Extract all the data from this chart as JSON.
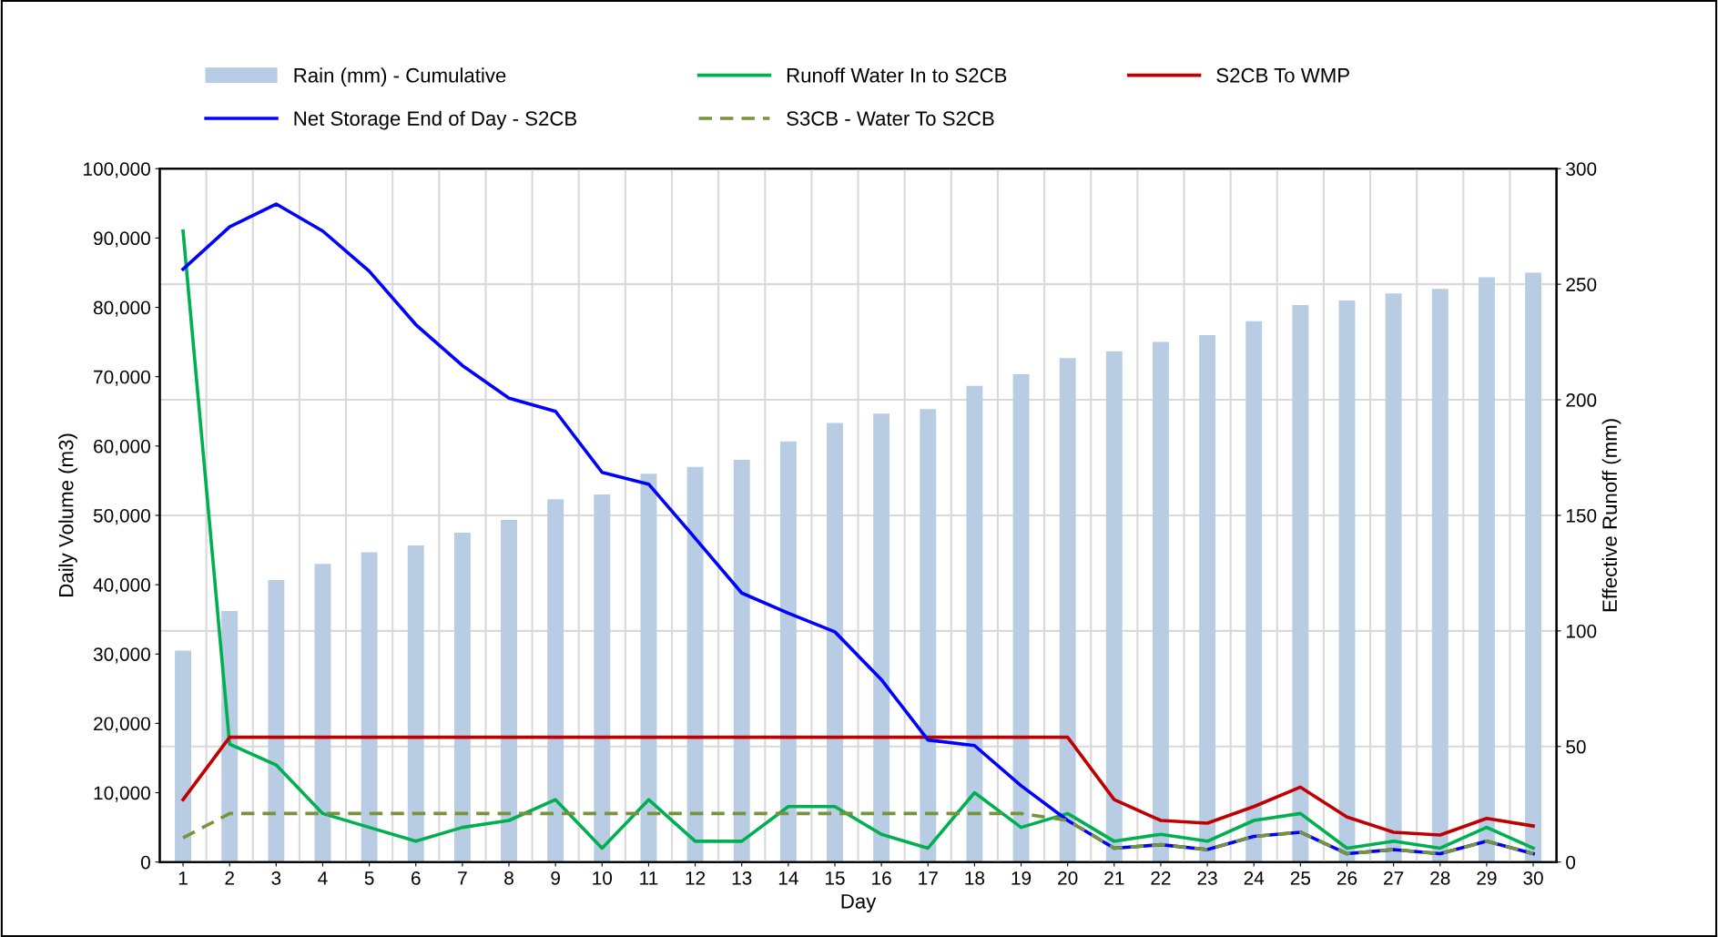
{
  "chart_data": {
    "type": "line",
    "xlabel": "Day",
    "ylabel": "Daily Volume (m3)",
    "y2label": "Effective Runoff (mm)",
    "categories": [
      "1",
      "2",
      "3",
      "4",
      "5",
      "6",
      "7",
      "8",
      "9",
      "10",
      "11",
      "12",
      "13",
      "14",
      "15",
      "16",
      "17",
      "18",
      "19",
      "20",
      "21",
      "22",
      "23",
      "24",
      "25",
      "26",
      "27",
      "28",
      "29",
      "30"
    ],
    "ylim": [
      0,
      100000
    ],
    "yticks": [
      {
        "value": 0,
        "label": "0"
      },
      {
        "value": 10000,
        "label": "10,000"
      },
      {
        "value": 20000,
        "label": "20,000"
      },
      {
        "value": 30000,
        "label": "30,000"
      },
      {
        "value": 40000,
        "label": "40,000"
      },
      {
        "value": 50000,
        "label": "50,000"
      },
      {
        "value": 60000,
        "label": "60,000"
      },
      {
        "value": 70000,
        "label": "70,000"
      },
      {
        "value": 80000,
        "label": "80,000"
      },
      {
        "value": 90000,
        "label": "90,000"
      },
      {
        "value": 100000,
        "label": "100,000"
      }
    ],
    "y2lim": [
      0,
      300
    ],
    "y2ticks": [
      0,
      50,
      100,
      150,
      200,
      250,
      300
    ],
    "grid": true,
    "legend": "top",
    "line_style": "solid",
    "marker": "none",
    "series": [
      {
        "name": "Rain (mm) - Cumulative",
        "type": "bar",
        "axis": "y2",
        "color": "#b8cce4",
        "values": [
          91.5,
          108.6,
          122,
          129,
          134,
          137,
          142.5,
          148,
          157,
          159,
          168,
          171,
          174,
          182,
          190,
          194,
          196,
          206,
          211,
          218,
          221,
          225,
          228,
          234,
          241,
          243,
          246,
          248,
          253,
          255
        ]
      },
      {
        "name": "Runoff Water In to S2CB",
        "color": "#00b050",
        "values": [
          91000,
          17000,
          14000,
          7000,
          5000,
          3000,
          5000,
          6000,
          9000,
          2000,
          9000,
          3000,
          3000,
          8000,
          8000,
          4000,
          2000,
          10000,
          5000,
          7000,
          3000,
          4000,
          3000,
          6000,
          7000,
          2000,
          3000,
          2000,
          5000,
          2000
        ]
      },
      {
        "name": "S2CB To WMP",
        "color": "#c00000",
        "values": [
          9000,
          18000,
          18000,
          18000,
          18000,
          18000,
          18000,
          18000,
          18000,
          18000,
          18000,
          18000,
          18000,
          18000,
          18000,
          18000,
          18000,
          18000,
          18000,
          18000,
          9000,
          6000,
          5600,
          8000,
          10800,
          6500,
          4300,
          3900,
          6300,
          5200
        ]
      },
      {
        "name": "Net Storage End of Day - S2CB",
        "color": "#0000ff",
        "values": [
          85500,
          91600,
          94900,
          91000,
          85200,
          77500,
          71600,
          66900,
          65000,
          56200,
          54500,
          46700,
          38800,
          35900,
          33200,
          26300,
          17600,
          16800,
          11000,
          6000,
          2000,
          2500,
          1800,
          3700,
          4300,
          1200,
          1800,
          1200,
          3000,
          1200
        ]
      },
      {
        "name": "S3CB - Water To S2CB",
        "line_style": "dashed",
        "color": "#77933c",
        "values": [
          3500,
          7000,
          7000,
          7000,
          7000,
          7000,
          7000,
          7000,
          7000,
          7000,
          7000,
          7000,
          7000,
          7000,
          7000,
          7000,
          7000,
          7000,
          7000,
          6000,
          2000,
          2500,
          1800,
          3700,
          4300,
          1200,
          1800,
          1200,
          3000,
          1200
        ]
      }
    ]
  }
}
